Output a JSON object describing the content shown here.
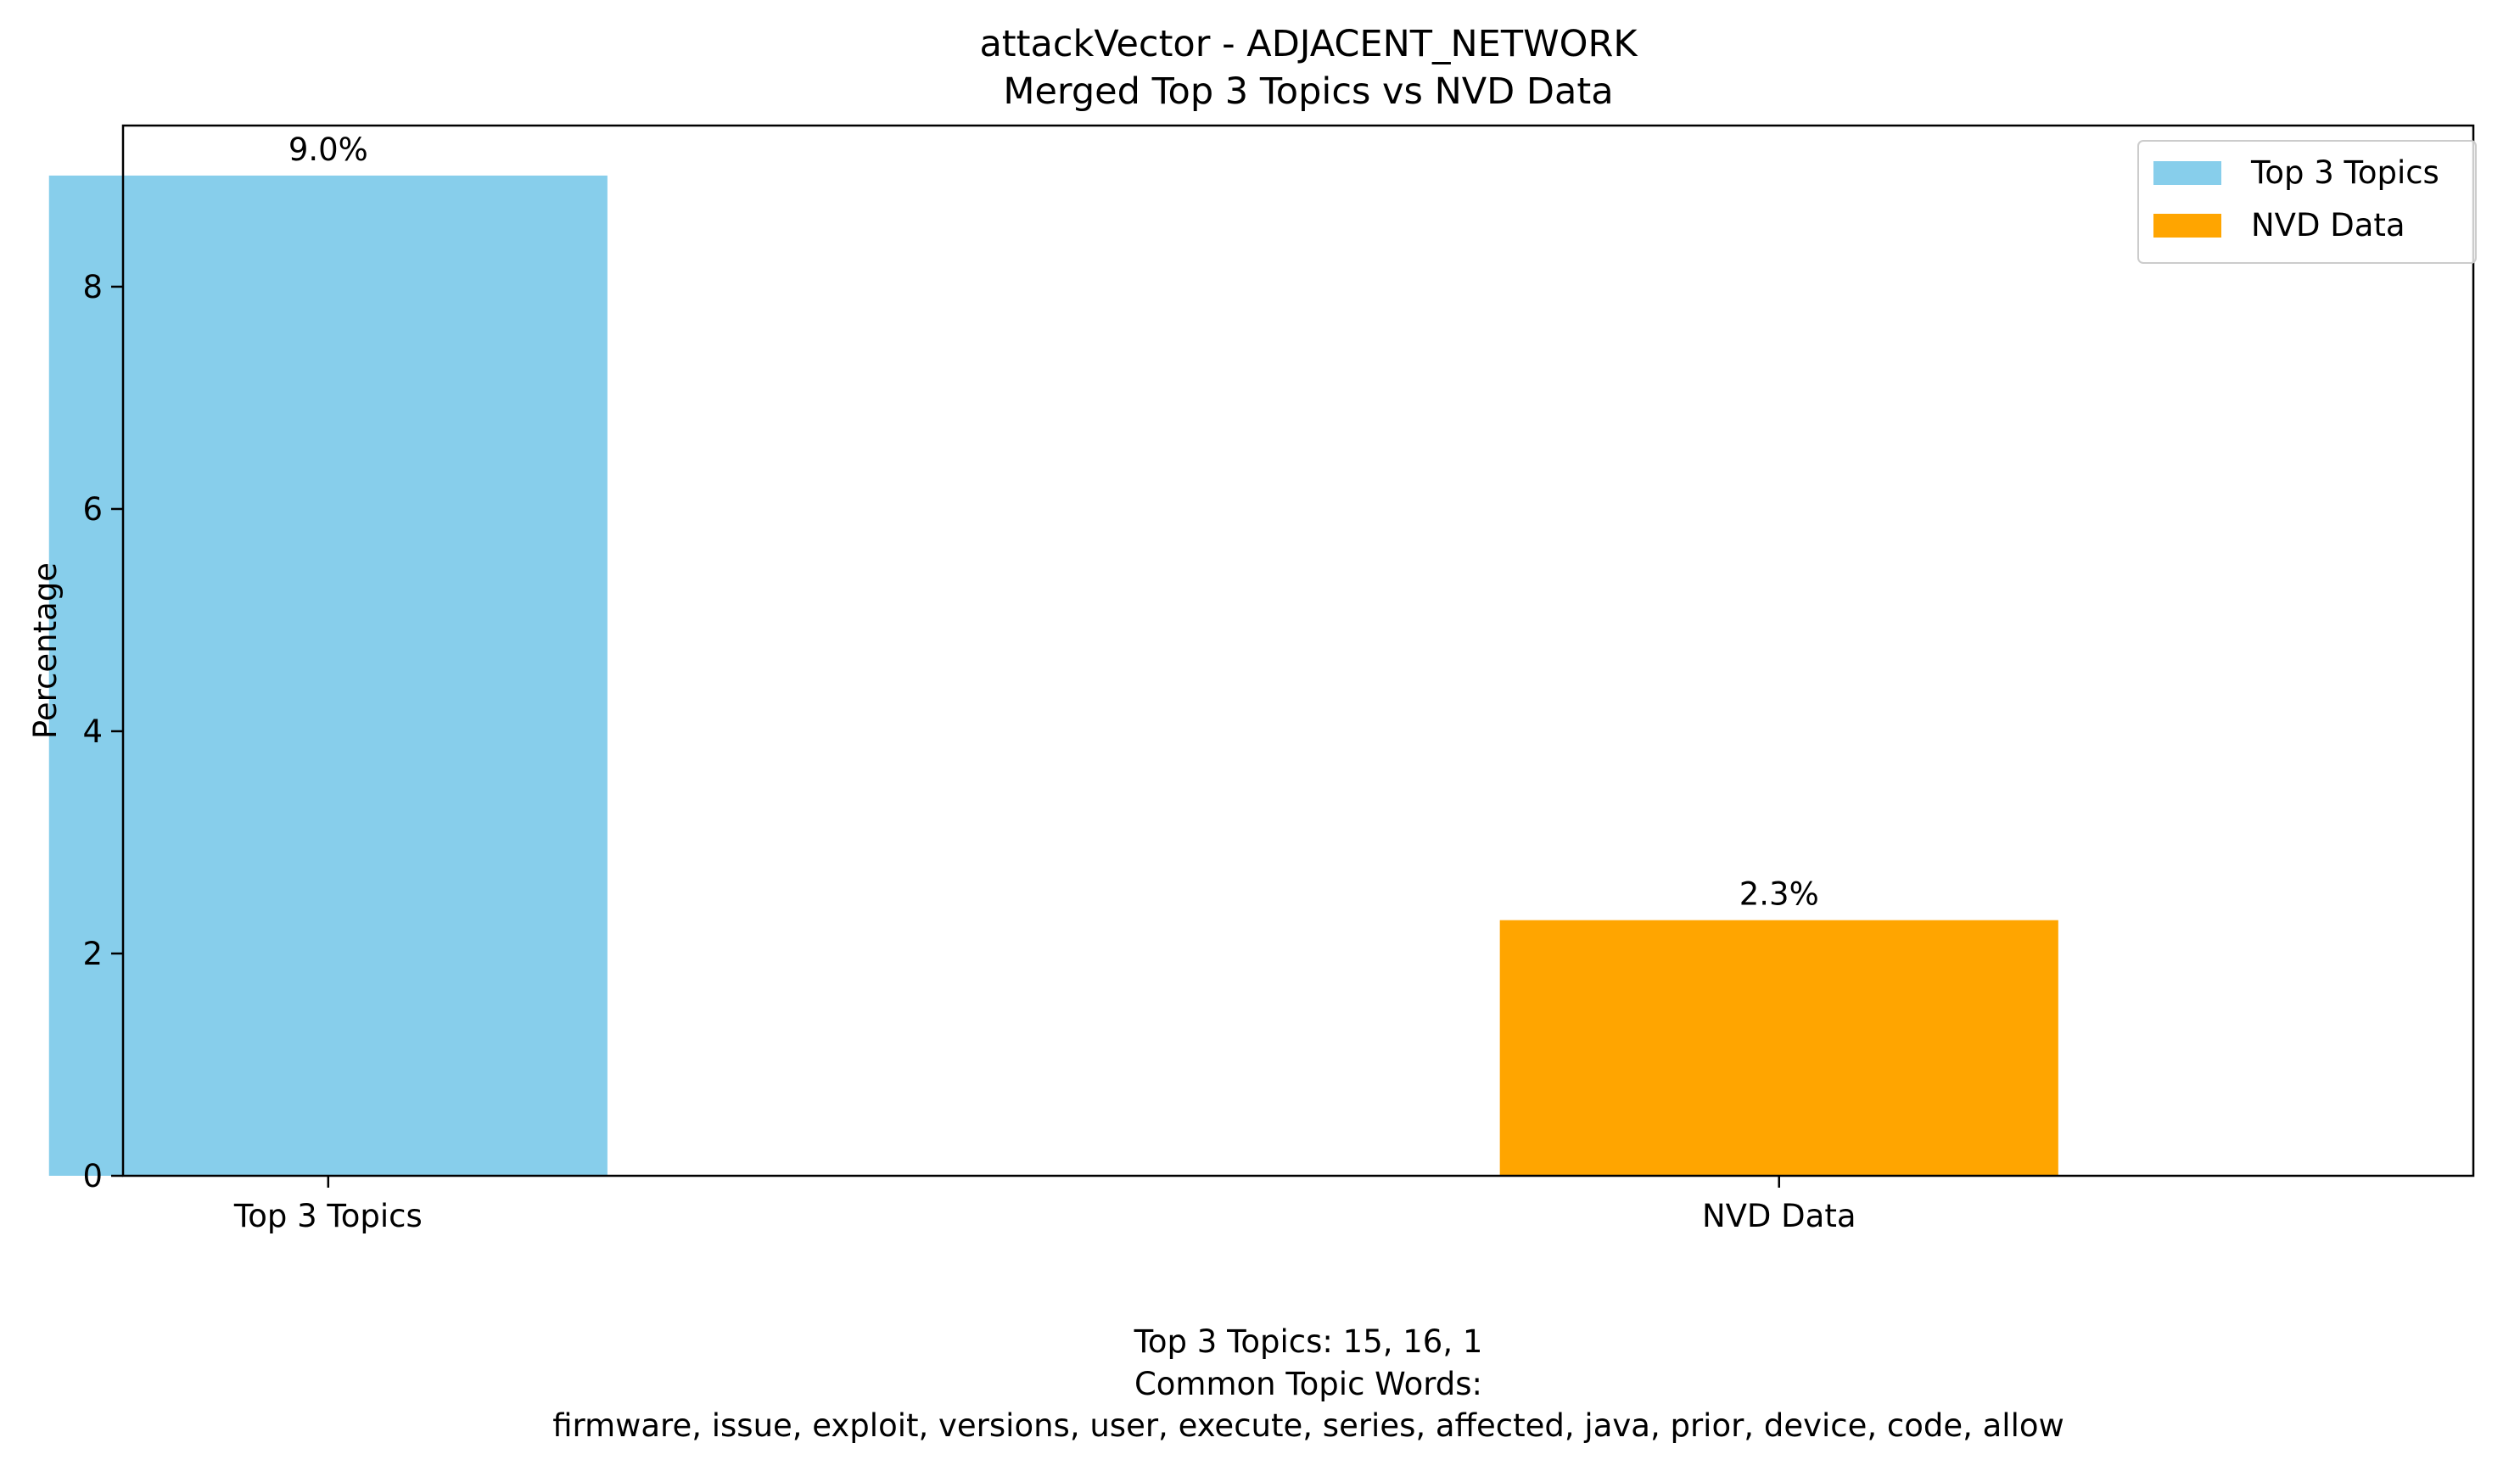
{
  "chart_data": {
    "type": "bar",
    "title": "attackVector - ADJACENT_NETWORK",
    "subtitle": "Merged Top 3 Topics vs NVD Data",
    "xlabel": "",
    "ylabel": "Percentage",
    "categories": [
      "Top 3 Topics",
      "NVD Data"
    ],
    "values": [
      9.0,
      2.3
    ],
    "data_labels": [
      "9.0%",
      "2.3%"
    ],
    "colors": [
      "#87CEEB",
      "#FFA500"
    ],
    "ylim": [
      0,
      9.45
    ],
    "yticks": [
      0,
      2,
      4,
      6,
      8
    ],
    "grid": false,
    "legend": {
      "position": "top-right",
      "entries": [
        {
          "label": "Top 3 Topics",
          "color": "#87CEEB"
        },
        {
          "label": "NVD Data",
          "color": "#FFA500"
        }
      ]
    },
    "caption": [
      "Top 3 Topics: 15, 16, 1",
      "Common Topic Words:",
      "firmware,  issue,  exploit,  versions,  user,  execute,  series,  affected,  java,  prior,  device,  code,  allow"
    ]
  }
}
